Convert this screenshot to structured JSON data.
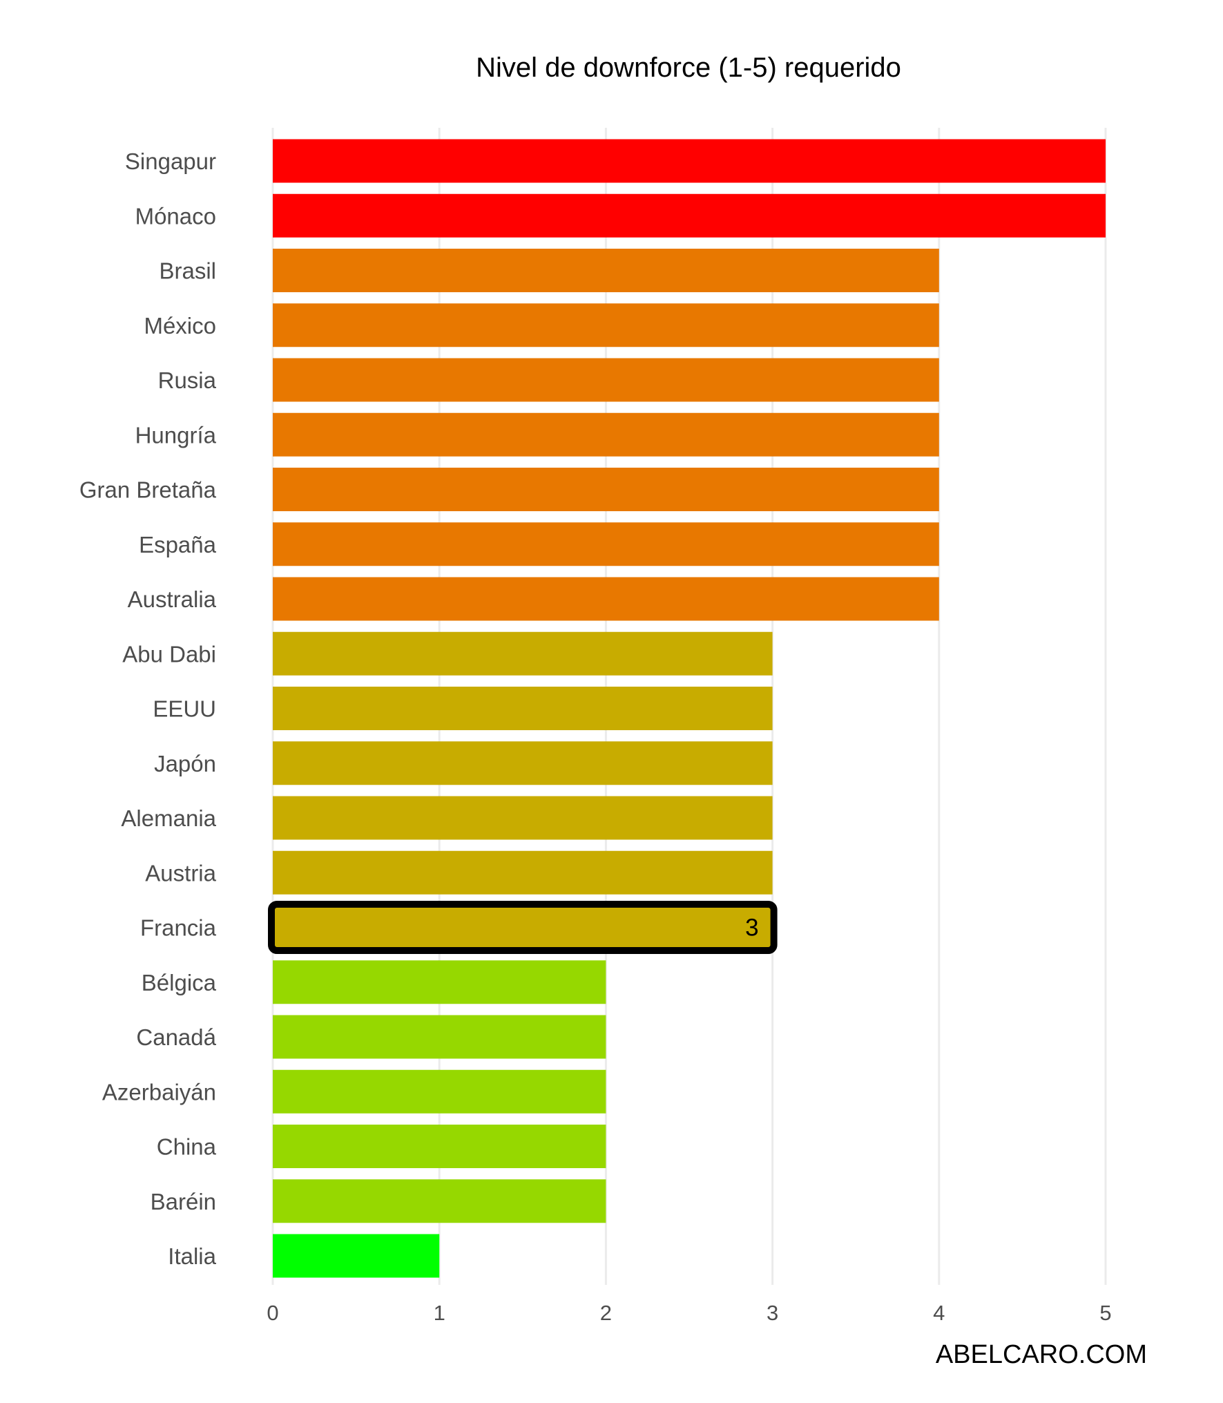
{
  "chart_data": {
    "type": "bar",
    "orientation": "horizontal",
    "title": "Nivel de downforce (1-5) requerido",
    "xlabel": "",
    "ylabel": "",
    "xlim": [
      0,
      5
    ],
    "x_ticks": [
      "0",
      "1",
      "2",
      "3",
      "4",
      "5"
    ],
    "grid": "vertical major gridlines",
    "legend": "none",
    "categories": [
      "Singapur",
      "Mónaco",
      "Brasil",
      "México",
      "Rusia",
      "Hungría",
      "Gran Bretaña",
      "España",
      "Australia",
      "Abu Dabi",
      "EEUU",
      "Japón",
      "Alemania",
      "Austria",
      "Francia",
      "Bélgica",
      "Canadá",
      "Azerbaiyán",
      "China",
      "Baréin",
      "Italia"
    ],
    "values": [
      5,
      5,
      4,
      4,
      4,
      4,
      4,
      4,
      4,
      3,
      3,
      3,
      3,
      3,
      3,
      2,
      2,
      2,
      2,
      2,
      1
    ],
    "colors": [
      "#ff0000",
      "#ff0000",
      "#e87800",
      "#e87800",
      "#e87800",
      "#e87800",
      "#e87800",
      "#e87800",
      "#e87800",
      "#c8ac00",
      "#c8ac00",
      "#c8ac00",
      "#c8ac00",
      "#c8ac00",
      "#c8ac00",
      "#96d800",
      "#96d800",
      "#96d800",
      "#96d800",
      "#96d800",
      "#00ff00"
    ],
    "highlight": {
      "category": "Francia",
      "label": "3",
      "outline_color": "#000000"
    }
  },
  "watermark": "ABELCARO.COM"
}
